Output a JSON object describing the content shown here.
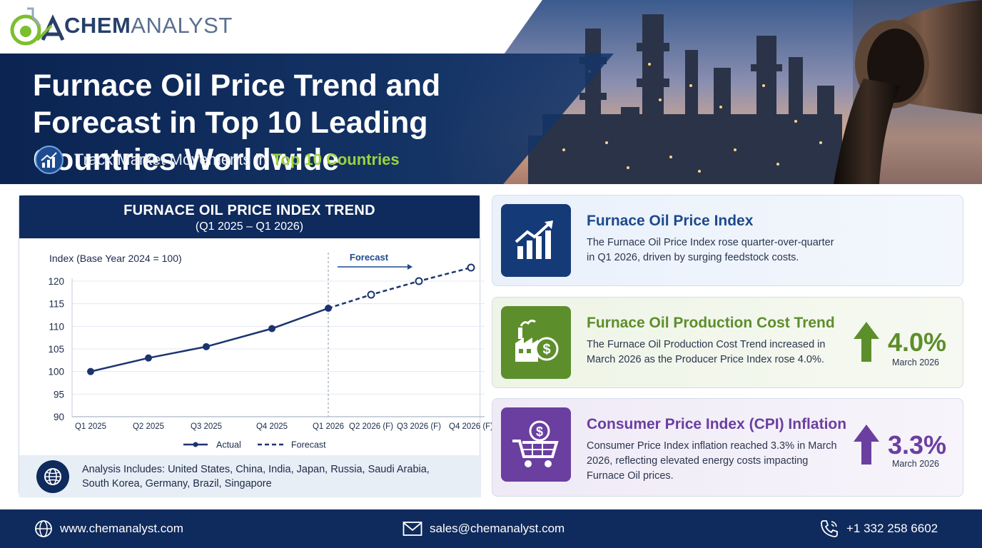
{
  "brand": {
    "part1": "CHEM",
    "part2": "ANALYST"
  },
  "header": {
    "title": "Furnace Oil Price Trend and Forecast in Top 10 Leading Countries Worldwide",
    "subtitle_prefix": "Track Market Movements in",
    "subtitle_highlight": "Top 10 Countries"
  },
  "chart_panel": {
    "title": "FURNACE OIL PRICE INDEX TREND",
    "subtitle": "(Q1 2025 – Q1 2026)"
  },
  "chart_data": {
    "type": "line",
    "ylabel": "Index (Base Year 2024 = 100)",
    "ylim": [
      90,
      120
    ],
    "yticks": [
      120,
      115,
      110,
      105,
      100,
      95,
      90
    ],
    "categories": [
      "Q1 2025",
      "Q2 2025",
      "Q3 2025",
      "Q4 2025",
      "Q1 2026",
      "Q2 2026 (F)",
      "Q3 2026 (F)",
      "Q4 2026 (F)"
    ],
    "forecast_label": "Forecast",
    "grid": true,
    "legend_position": "bottom",
    "series": [
      {
        "name": "Actual",
        "style": "solid",
        "color": "#1b3470",
        "values": [
          100,
          103,
          105.5,
          109.5,
          114,
          null,
          null,
          null
        ]
      },
      {
        "name": "Forecast",
        "style": "dashed",
        "color": "#1b3470",
        "values": [
          null,
          null,
          null,
          null,
          114,
          117,
          120,
          123
        ]
      }
    ]
  },
  "analysis": {
    "text": "Analysis Includes: United States, China, India, Japan, Russia, Saudi Arabia, South Korea, Germany, Brazil, Singapore"
  },
  "cards": [
    {
      "title": "Furnace Oil Price Index",
      "description": "The Furnace Oil Price Index rose quarter-over-quarter in Q1 2026, driven by surging feedstock costs.",
      "icon": "bar-chart-up-icon",
      "color": "#143a78"
    },
    {
      "title": "Furnace Oil Production Cost Trend",
      "description": "The Furnace Oil Production Cost Trend increased in March 2026 as the Producer Price Index rose 4.0%.",
      "value": "4.0%",
      "value_date": "March 2026",
      "icon": "factory-dollar-icon",
      "color": "#5d8e2c"
    },
    {
      "title": "Consumer Price Index (CPI) Inflation",
      "description": "Consumer Price Index inflation reached 3.3% in March 2026, reflecting elevated energy costs impacting Furnace Oil prices.",
      "value": "3.3%",
      "value_date": "March 2026",
      "icon": "shopping-cart-dollar-icon",
      "color": "#6a3fa0"
    }
  ],
  "footer": {
    "website": "www.chemanalyst.com",
    "email": "sales@chemanalyst.com",
    "phone": "+1 332 258 6602"
  }
}
